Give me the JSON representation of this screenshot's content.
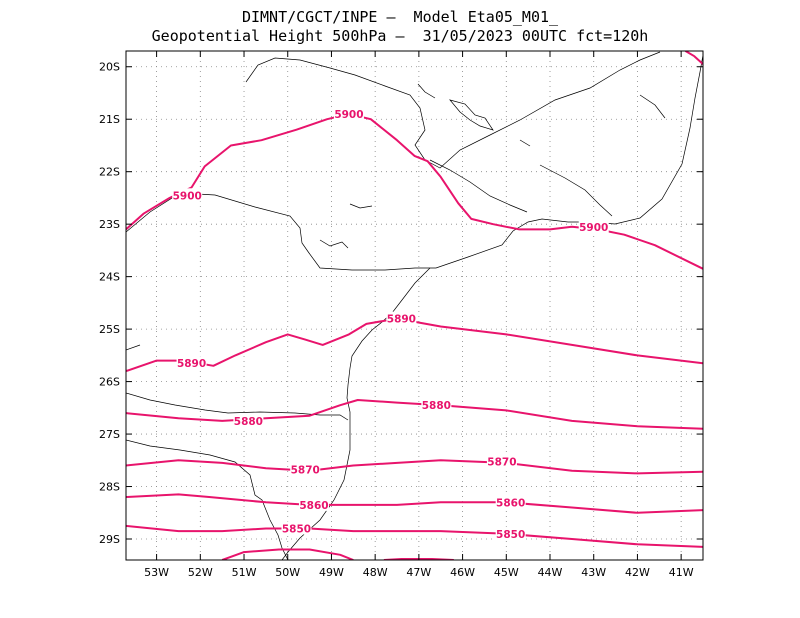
{
  "title": {
    "line1": "DIMNT/CGCT/INPE –  Model Eta05_M01_",
    "line2": "Geopotential Height 500hPa –  31/05/2023 00UTC fct=120h"
  },
  "map": {
    "lon_range": [
      -53.7,
      -40.5
    ],
    "lat_range": [
      -29.4,
      -19.7
    ],
    "x_ticks": [
      {
        "value": -53,
        "label": "53W"
      },
      {
        "value": -52,
        "label": "52W"
      },
      {
        "value": -51,
        "label": "51W"
      },
      {
        "value": -50,
        "label": "50W"
      },
      {
        "value": -49,
        "label": "49W"
      },
      {
        "value": -48,
        "label": "48W"
      },
      {
        "value": -47,
        "label": "47W"
      },
      {
        "value": -46,
        "label": "46W"
      },
      {
        "value": -45,
        "label": "45W"
      },
      {
        "value": -44,
        "label": "44W"
      },
      {
        "value": -43,
        "label": "43W"
      },
      {
        "value": -42,
        "label": "42W"
      },
      {
        "value": -41,
        "label": "41W"
      }
    ],
    "y_ticks": [
      {
        "value": -20,
        "label": "20S"
      },
      {
        "value": -21,
        "label": "21S"
      },
      {
        "value": -22,
        "label": "22S"
      },
      {
        "value": -23,
        "label": "23S"
      },
      {
        "value": -24,
        "label": "24S"
      },
      {
        "value": -25,
        "label": "25S"
      },
      {
        "value": -26,
        "label": "26S"
      },
      {
        "value": -27,
        "label": "27S"
      },
      {
        "value": -28,
        "label": "28S"
      },
      {
        "value": -29,
        "label": "29S"
      }
    ],
    "grid": "dotted",
    "contour_color": "#e8146c",
    "coast_color": "#000000"
  },
  "chart_data": {
    "type": "contour",
    "variable": "Geopotential Height 500hPa",
    "contours": [
      {
        "level": 5900,
        "labels": [
          "5900",
          "5900",
          "5900"
        ],
        "points": [
          [
            -53.7,
            -23.1
          ],
          [
            -53.3,
            -22.8
          ],
          [
            -52.7,
            -22.5
          ],
          [
            -52.2,
            -22.3
          ],
          [
            -51.9,
            -21.9
          ],
          [
            -51.3,
            -21.5
          ],
          [
            -50.6,
            -21.4
          ],
          [
            -49.8,
            -21.2
          ],
          [
            -49.1,
            -21.0
          ],
          [
            -48.6,
            -20.9
          ],
          [
            -48.1,
            -21.0
          ],
          [
            -47.5,
            -21.4
          ],
          [
            -47.1,
            -21.7
          ],
          [
            -46.8,
            -21.8
          ],
          [
            -46.5,
            -22.1
          ],
          [
            -46.1,
            -22.6
          ],
          [
            -45.8,
            -22.9
          ],
          [
            -45.3,
            -23.0
          ],
          [
            -44.7,
            -23.1
          ],
          [
            -44.0,
            -23.1
          ],
          [
            -43.5,
            -23.05
          ],
          [
            -42.9,
            -23.1
          ],
          [
            -42.3,
            -23.2
          ],
          [
            -41.6,
            -23.4
          ],
          [
            -40.5,
            -23.85
          ]
        ]
      },
      {
        "level": 5900,
        "labels": [],
        "points": [
          [
            -40.9,
            -19.7
          ],
          [
            -40.7,
            -19.8
          ],
          [
            -40.5,
            -19.95
          ]
        ]
      },
      {
        "level": 5890,
        "labels": [
          "5890",
          "5890"
        ],
        "points": [
          [
            -53.7,
            -25.8
          ],
          [
            -53.0,
            -25.6
          ],
          [
            -52.4,
            -25.6
          ],
          [
            -51.7,
            -25.7
          ],
          [
            -51.2,
            -25.5
          ],
          [
            -50.5,
            -25.25
          ],
          [
            -50.0,
            -25.1
          ],
          [
            -49.6,
            -25.2
          ],
          [
            -49.2,
            -25.3
          ],
          [
            -48.6,
            -25.1
          ],
          [
            -48.2,
            -24.9
          ],
          [
            -47.5,
            -24.8
          ],
          [
            -46.5,
            -24.95
          ],
          [
            -45.0,
            -25.1
          ],
          [
            -43.5,
            -25.3
          ],
          [
            -42.0,
            -25.5
          ],
          [
            -40.5,
            -25.65
          ]
        ]
      },
      {
        "level": 5880,
        "labels": [
          "5880",
          "5880"
        ],
        "points": [
          [
            -53.7,
            -26.6
          ],
          [
            -52.5,
            -26.7
          ],
          [
            -51.5,
            -26.75
          ],
          [
            -50.5,
            -26.7
          ],
          [
            -49.5,
            -26.65
          ],
          [
            -48.8,
            -26.45
          ],
          [
            -48.4,
            -26.35
          ],
          [
            -47.5,
            -26.4
          ],
          [
            -46.5,
            -26.45
          ],
          [
            -45.0,
            -26.55
          ],
          [
            -43.5,
            -26.75
          ],
          [
            -42.0,
            -26.85
          ],
          [
            -40.5,
            -26.9
          ]
        ]
      },
      {
        "level": 5870,
        "labels": [
          "5870",
          "5870"
        ],
        "points": [
          [
            -53.7,
            -27.6
          ],
          [
            -52.5,
            -27.5
          ],
          [
            -51.5,
            -27.55
          ],
          [
            -50.5,
            -27.65
          ],
          [
            -49.5,
            -27.7
          ],
          [
            -48.5,
            -27.6
          ],
          [
            -47.5,
            -27.55
          ],
          [
            -46.5,
            -27.5
          ],
          [
            -45.0,
            -27.55
          ],
          [
            -43.5,
            -27.7
          ],
          [
            -42.0,
            -27.75
          ],
          [
            -40.5,
            -27.72
          ]
        ]
      },
      {
        "level": 5860,
        "labels": [
          "5860",
          "5860"
        ],
        "points": [
          [
            -53.7,
            -28.2
          ],
          [
            -52.5,
            -28.15
          ],
          [
            -51.8,
            -28.2
          ],
          [
            -50.5,
            -28.3
          ],
          [
            -49.5,
            -28.35
          ],
          [
            -48.5,
            -28.35
          ],
          [
            -47.5,
            -28.35
          ],
          [
            -46.5,
            -28.3
          ],
          [
            -45.0,
            -28.3
          ],
          [
            -43.5,
            -28.4
          ],
          [
            -42.0,
            -28.5
          ],
          [
            -40.5,
            -28.45
          ]
        ]
      },
      {
        "level": 5850,
        "labels": [
          "5850",
          "5850"
        ],
        "points": [
          [
            -53.7,
            -28.75
          ],
          [
            -52.5,
            -28.85
          ],
          [
            -51.5,
            -28.85
          ],
          [
            -50.5,
            -28.8
          ],
          [
            -49.5,
            -28.8
          ],
          [
            -48.5,
            -28.85
          ],
          [
            -47.5,
            -28.85
          ],
          [
            -46.5,
            -28.85
          ],
          [
            -45.0,
            -28.9
          ],
          [
            -43.5,
            -29.0
          ],
          [
            -42.0,
            -29.1
          ],
          [
            -40.5,
            -29.15
          ]
        ]
      },
      {
        "level": 5840,
        "labels": [],
        "points": [
          [
            -51.5,
            -29.4
          ],
          [
            -51.0,
            -29.25
          ],
          [
            -50.2,
            -29.2
          ],
          [
            -49.5,
            -29.2
          ],
          [
            -48.8,
            -29.3
          ],
          [
            -48.5,
            -29.4
          ]
        ]
      },
      {
        "level": 5840,
        "labels": [],
        "points": [
          [
            -47.8,
            -29.4
          ],
          [
            -47.4,
            -29.38
          ],
          [
            -46.7,
            -29.38
          ],
          [
            -46.2,
            -29.4
          ]
        ]
      }
    ]
  }
}
